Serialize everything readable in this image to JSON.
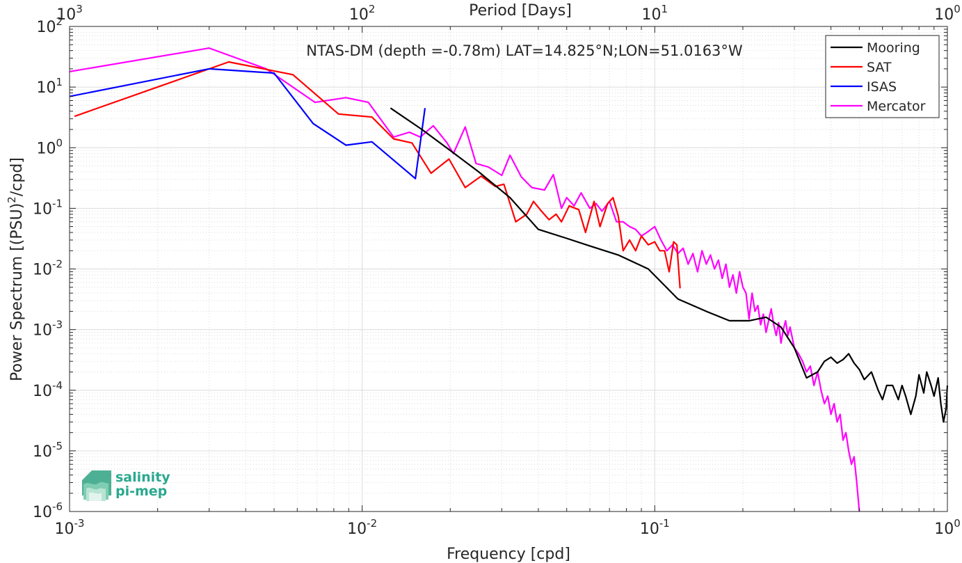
{
  "chart_data": {
    "type": "line",
    "title": "NTAS-DM (depth =-0.78m) LAT=14.825°N;LON=51.0163°W",
    "xlabel": "Frequency [cpd]",
    "ylabel_main": "Power Spectrum [(PSU)",
    "ylabel_sup": "2",
    "ylabel_tail": "/cpd]",
    "x2label": "Period [Days]",
    "xscale": "log",
    "yscale": "log",
    "xlim": [
      0.001,
      1
    ],
    "ylim": [
      1e-06,
      100
    ],
    "grid": true,
    "legend_position": "top-right",
    "x_ticks": [
      {
        "value": 0.001,
        "base": "10",
        "exp": "-3"
      },
      {
        "value": 0.01,
        "base": "10",
        "exp": "-2"
      },
      {
        "value": 0.1,
        "base": "10",
        "exp": "-1"
      },
      {
        "value": 1,
        "base": "10",
        "exp": "0"
      }
    ],
    "x2_ticks": [
      {
        "value": 0.001,
        "base": "10",
        "exp": "3"
      },
      {
        "value": 0.01,
        "base": "10",
        "exp": "2"
      },
      {
        "value": 0.1,
        "base": "10",
        "exp": "1"
      },
      {
        "value": 1,
        "base": "10",
        "exp": "0"
      }
    ],
    "y_ticks": [
      {
        "value": 100,
        "base": "10",
        "exp": "2"
      },
      {
        "value": 10,
        "base": "10",
        "exp": "1"
      },
      {
        "value": 1,
        "base": "10",
        "exp": "0"
      },
      {
        "value": 0.1,
        "base": "10",
        "exp": "-1"
      },
      {
        "value": 0.01,
        "base": "10",
        "exp": "-2"
      },
      {
        "value": 0.001,
        "base": "10",
        "exp": "-3"
      },
      {
        "value": 0.0001,
        "base": "10",
        "exp": "-4"
      },
      {
        "value": 1e-05,
        "base": "10",
        "exp": "-5"
      },
      {
        "value": 1e-06,
        "base": "10",
        "exp": "-6"
      }
    ],
    "series": [
      {
        "name": "Mooring",
        "color": "#000000",
        "points": [
          [
            0.0125,
            4.5
          ],
          [
            0.016,
            2.0
          ],
          [
            0.02,
            0.9
          ],
          [
            0.025,
            0.4
          ],
          [
            0.032,
            0.15
          ],
          [
            0.04,
            0.045
          ],
          [
            0.05,
            0.032
          ],
          [
            0.06,
            0.024
          ],
          [
            0.075,
            0.017
          ],
          [
            0.095,
            0.01
          ],
          [
            0.12,
            0.0032
          ],
          [
            0.15,
            0.002
          ],
          [
            0.18,
            0.0014
          ],
          [
            0.21,
            0.0014
          ],
          [
            0.24,
            0.0016
          ],
          [
            0.27,
            0.0011
          ],
          [
            0.3,
            0.0005
          ],
          [
            0.33,
            0.00016
          ],
          [
            0.36,
            0.0002
          ],
          [
            0.38,
            0.0003
          ],
          [
            0.4,
            0.00035
          ],
          [
            0.42,
            0.00028
          ],
          [
            0.44,
            0.00032
          ],
          [
            0.46,
            0.0004
          ],
          [
            0.48,
            0.00028
          ],
          [
            0.5,
            0.00022
          ],
          [
            0.52,
            0.00015
          ],
          [
            0.55,
            0.0002
          ],
          [
            0.58,
            0.0001
          ],
          [
            0.6,
            7e-05
          ],
          [
            0.62,
            0.00012
          ],
          [
            0.65,
            0.00012
          ],
          [
            0.68,
            7e-05
          ],
          [
            0.7,
            0.00012
          ],
          [
            0.72,
            8e-05
          ],
          [
            0.75,
            4e-05
          ],
          [
            0.78,
            8e-05
          ],
          [
            0.8,
            0.00018
          ],
          [
            0.83,
            9e-05
          ],
          [
            0.85,
            0.0002
          ],
          [
            0.88,
            0.00012
          ],
          [
            0.9,
            8e-05
          ],
          [
            0.93,
            0.00016
          ],
          [
            0.95,
            6e-05
          ],
          [
            0.97,
            3e-05
          ],
          [
            0.99,
            5e-05
          ],
          [
            1.0,
            0.00012
          ]
        ]
      },
      {
        "name": "SAT",
        "color": "#ff0000",
        "points": [
          [
            0.00104,
            3.3
          ],
          [
            0.0035,
            26
          ],
          [
            0.0058,
            16
          ],
          [
            0.0083,
            3.6
          ],
          [
            0.0108,
            3.2
          ],
          [
            0.0128,
            1.4
          ],
          [
            0.0148,
            1.2
          ],
          [
            0.0172,
            0.38
          ],
          [
            0.0198,
            0.65
          ],
          [
            0.0225,
            0.22
          ],
          [
            0.0255,
            0.34
          ],
          [
            0.0285,
            0.23
          ],
          [
            0.0305,
            0.25
          ],
          [
            0.0335,
            0.06
          ],
          [
            0.0365,
            0.08
          ],
          [
            0.0385,
            0.13
          ],
          [
            0.041,
            0.09
          ],
          [
            0.0435,
            0.065
          ],
          [
            0.046,
            0.08
          ],
          [
            0.048,
            0.06
          ],
          [
            0.051,
            0.11
          ],
          [
            0.055,
            0.095
          ],
          [
            0.058,
            0.04
          ],
          [
            0.062,
            0.13
          ],
          [
            0.065,
            0.05
          ],
          [
            0.069,
            0.12
          ],
          [
            0.072,
            0.15
          ],
          [
            0.075,
            0.075
          ],
          [
            0.078,
            0.02
          ],
          [
            0.082,
            0.03
          ],
          [
            0.086,
            0.02
          ],
          [
            0.09,
            0.035
          ],
          [
            0.095,
            0.025
          ],
          [
            0.1,
            0.028
          ],
          [
            0.104,
            0.02
          ],
          [
            0.108,
            0.02
          ],
          [
            0.112,
            0.009
          ],
          [
            0.116,
            0.028
          ],
          [
            0.119,
            0.025
          ],
          [
            0.122,
            0.0048
          ]
        ]
      },
      {
        "name": "ISAS",
        "color": "#0000ff",
        "points": [
          [
            0.001,
            7.0
          ],
          [
            0.003,
            20
          ],
          [
            0.005,
            17
          ],
          [
            0.0068,
            2.5
          ],
          [
            0.0088,
            1.1
          ],
          [
            0.0108,
            1.25
          ],
          [
            0.0152,
            0.31
          ],
          [
            0.0164,
            4.5
          ]
        ]
      },
      {
        "name": "Mercator",
        "color": "#ff00ff",
        "points": [
          [
            0.001,
            18
          ],
          [
            0.003,
            44
          ],
          [
            0.0047,
            20
          ],
          [
            0.0069,
            5.6
          ],
          [
            0.0088,
            6.7
          ],
          [
            0.0105,
            5.6
          ],
          [
            0.0128,
            1.5
          ],
          [
            0.0145,
            1.8
          ],
          [
            0.0158,
            1.5
          ],
          [
            0.0175,
            2.3
          ],
          [
            0.0195,
            1.2
          ],
          [
            0.0205,
            0.8
          ],
          [
            0.0225,
            2.2
          ],
          [
            0.0245,
            0.55
          ],
          [
            0.027,
            0.48
          ],
          [
            0.03,
            0.35
          ],
          [
            0.032,
            0.75
          ],
          [
            0.035,
            0.33
          ],
          [
            0.038,
            0.22
          ],
          [
            0.042,
            0.2
          ],
          [
            0.045,
            0.36
          ],
          [
            0.048,
            0.1
          ],
          [
            0.05,
            0.15
          ],
          [
            0.053,
            0.11
          ],
          [
            0.056,
            0.18
          ],
          [
            0.06,
            0.1
          ],
          [
            0.063,
            0.12
          ],
          [
            0.066,
            0.09
          ],
          [
            0.07,
            0.13
          ],
          [
            0.074,
            0.06
          ],
          [
            0.078,
            0.06
          ],
          [
            0.082,
            0.05
          ],
          [
            0.086,
            0.045
          ],
          [
            0.09,
            0.035
          ],
          [
            0.094,
            0.04
          ],
          [
            0.1,
            0.05
          ],
          [
            0.105,
            0.03
          ],
          [
            0.11,
            0.02
          ],
          [
            0.115,
            0.025
          ],
          [
            0.12,
            0.018
          ],
          [
            0.125,
            0.022
          ],
          [
            0.13,
            0.012
          ],
          [
            0.135,
            0.018
          ],
          [
            0.14,
            0.009
          ],
          [
            0.145,
            0.02
          ],
          [
            0.15,
            0.012
          ],
          [
            0.155,
            0.017
          ],
          [
            0.16,
            0.01
          ],
          [
            0.165,
            0.014
          ],
          [
            0.17,
            0.007
          ],
          [
            0.175,
            0.012
          ],
          [
            0.18,
            0.005
          ],
          [
            0.185,
            0.008
          ],
          [
            0.19,
            0.004
          ],
          [
            0.195,
            0.009
          ],
          [
            0.2,
            0.005
          ],
          [
            0.205,
            0.004
          ],
          [
            0.21,
            0.0015
          ],
          [
            0.215,
            0.004
          ],
          [
            0.22,
            0.002
          ],
          [
            0.225,
            0.0025
          ],
          [
            0.23,
            0.0012
          ],
          [
            0.235,
            0.0018
          ],
          [
            0.24,
            0.0009
          ],
          [
            0.245,
            0.0014
          ],
          [
            0.25,
            0.0022
          ],
          [
            0.255,
            0.0012
          ],
          [
            0.26,
            0.0008
          ],
          [
            0.265,
            0.0013
          ],
          [
            0.27,
            0.0006
          ],
          [
            0.275,
            0.001
          ],
          [
            0.28,
            0.0014
          ],
          [
            0.285,
            0.0008
          ],
          [
            0.29,
            0.0011
          ],
          [
            0.3,
            0.0005
          ],
          [
            0.31,
            0.0004
          ],
          [
            0.32,
            0.0003
          ],
          [
            0.33,
            0.0002
          ],
          [
            0.34,
            0.00025
          ],
          [
            0.35,
            0.00012
          ],
          [
            0.36,
            0.0002
          ],
          [
            0.37,
            0.0001
          ],
          [
            0.38,
            6e-05
          ],
          [
            0.39,
            8e-05
          ],
          [
            0.4,
            4e-05
          ],
          [
            0.41,
            6e-05
          ],
          [
            0.42,
            3e-05
          ],
          [
            0.43,
            4e-05
          ],
          [
            0.44,
            1.5e-05
          ],
          [
            0.45,
            2e-05
          ],
          [
            0.46,
            1e-05
          ],
          [
            0.47,
            6e-06
          ],
          [
            0.48,
            8e-06
          ],
          [
            0.49,
            3e-06
          ],
          [
            0.5,
            1e-06
          ]
        ]
      }
    ]
  },
  "logo": {
    "line1": "salinity",
    "line2": "pi-mep"
  }
}
